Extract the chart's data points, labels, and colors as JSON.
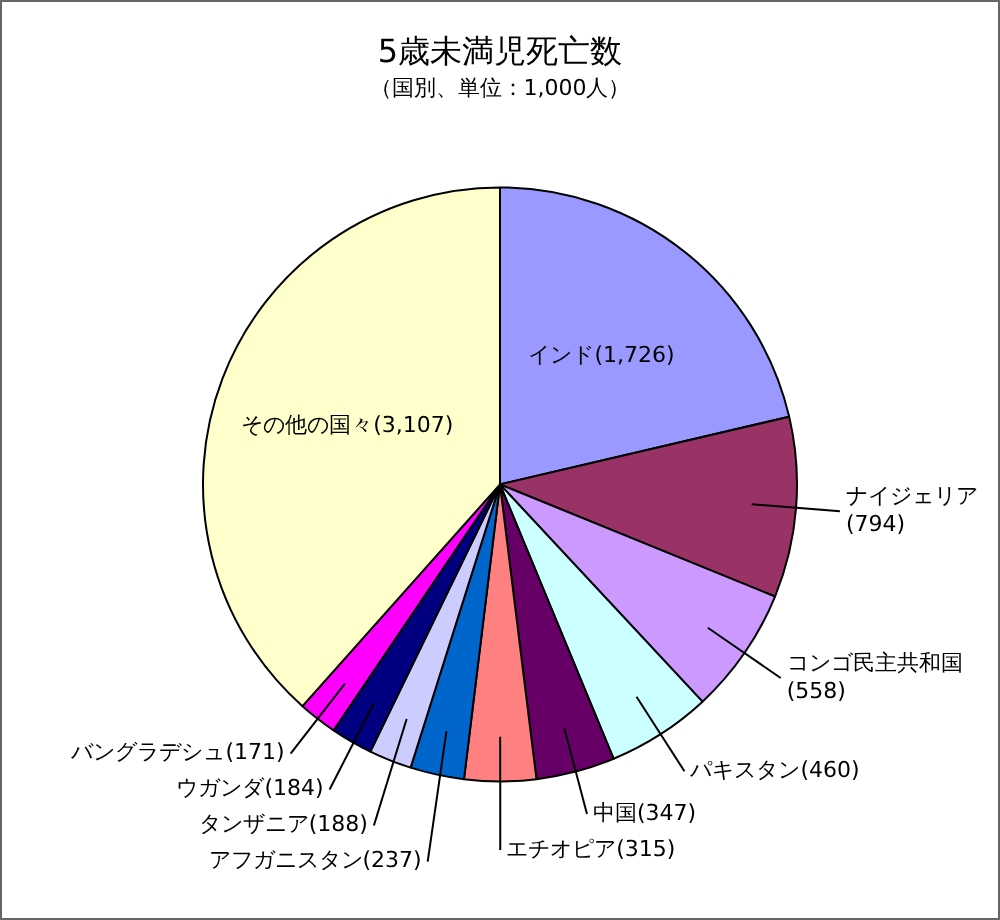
{
  "chart_data": {
    "type": "pie",
    "title": "5歳未満児死亡数",
    "subtitle": "（国別、単位：1,000人）",
    "categories": [
      "インド",
      "ナイジェリア",
      "コンゴ民主共和国",
      "パキスタン",
      "中国",
      "エチオピア",
      "アフガニスタン",
      "タンザニア",
      "ウガンダ",
      "バングラデシュ",
      "その他の国々"
    ],
    "values": [
      1726,
      794,
      558,
      460,
      347,
      315,
      237,
      188,
      184,
      171,
      3107
    ],
    "value_labels": [
      "(1,726)",
      "(794)",
      "(558)",
      "(460)",
      "(347)",
      "(315)",
      "(237)",
      "(188)",
      "(184)",
      "(171)",
      "(3,107)"
    ],
    "colors": [
      "#9999ff",
      "#993366",
      "#cc99ff",
      "#ccffff",
      "#660066",
      "#ff8080",
      "#0066cc",
      "#ccccff",
      "#000080",
      "#ff00ff",
      "#ffffcc"
    ],
    "legend": false
  }
}
